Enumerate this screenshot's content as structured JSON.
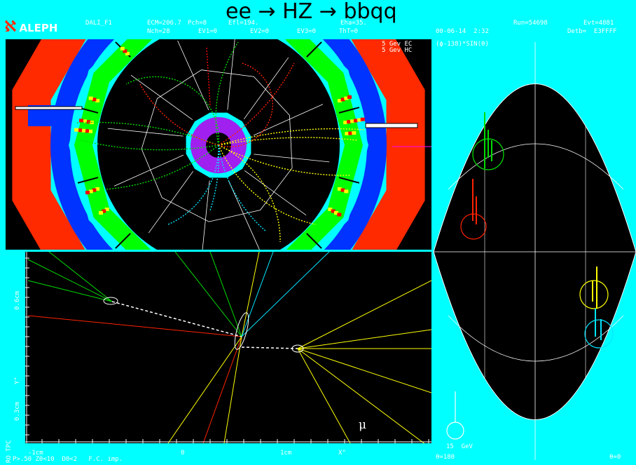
{
  "header": {
    "title": "ee → HZ → bbqq",
    "experiment": "ALEPH",
    "program": "DALI_F1",
    "ecm": "ECM=206.7",
    "pch": "Pch=8",
    "efl": "Efl=194.",
    "eha": "Eha=35.",
    "run": "Run=54698",
    "evt": "Evt=4881",
    "nch": "Nch=28",
    "ev1": "EV1=0",
    "ev2": "EV2=0",
    "ev3": "EV3=0",
    "tht": "ThT=0",
    "date": "00-06-14  2:32",
    "detb": "Detb=  E3FFFF"
  },
  "scale_legend": {
    "ec": "5 Gev EC",
    "hc": "5 Gev HC"
  },
  "right_panel": {
    "label": "(ϕ-138)*SIN(θ)",
    "energy": "15  GeV",
    "theta_left": "θ=180",
    "theta_right": "θ=0"
  },
  "bottom_panel": {
    "y_label_top": "0.6cm",
    "y_label_mid": "Y\"",
    "y_label_bottom": "0.3cm",
    "side_label": "RO TPC",
    "x_label_left": "-1cm",
    "x_label_zero": "0",
    "x_label_right": "1cm",
    "x_label_axis": "X\"",
    "footer": "P>.50 Z0<10  D0<2   F.C. imp.",
    "mu": "μ"
  },
  "colors": {
    "background": "#00ffff",
    "panel": "#000000",
    "hcal": "#ff2a00",
    "coil": "#0033ff",
    "ecal": "#00ff00",
    "tpc": "#00ffff",
    "itc": "#a020f0",
    "track_green": "#00dd00",
    "track_red": "#ff2200",
    "track_yellow": "#ffff00",
    "track_cyan": "#00e5ff",
    "cell_yellow": "#ffff00",
    "cell_red": "#ff0000"
  }
}
